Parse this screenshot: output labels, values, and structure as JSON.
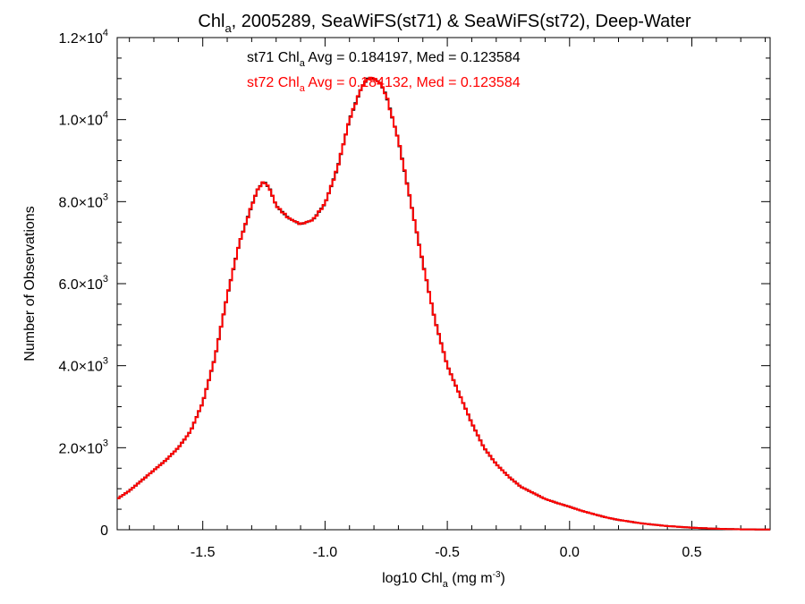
{
  "chart_data": {
    "type": "line",
    "title_parts": [
      "Chl",
      "a",
      ", 2005289, SeaWiFS(st71) & SeaWiFS(st72), Deep-Water"
    ],
    "xlabel_parts": [
      "log10 Chl",
      "a",
      " (mg m",
      "-3",
      ")"
    ],
    "ylabel": "Number of Observations",
    "xlim": [
      -1.85,
      0.82
    ],
    "ylim": [
      0,
      12000
    ],
    "x_ticks": [
      {
        "value": -1.5,
        "label": "-1.5"
      },
      {
        "value": -1.0,
        "label": "-1.0"
      },
      {
        "value": -0.5,
        "label": "-0.5"
      },
      {
        "value": 0.0,
        "label": "0.0"
      },
      {
        "value": 0.5,
        "label": "0.5"
      }
    ],
    "y_ticks": [
      {
        "value": 0,
        "mantissa": "0",
        "exp": ""
      },
      {
        "value": 2000,
        "mantissa": "2.0×10",
        "exp": "3"
      },
      {
        "value": 4000,
        "mantissa": "4.0×10",
        "exp": "3"
      },
      {
        "value": 6000,
        "mantissa": "6.0×10",
        "exp": "3"
      },
      {
        "value": 8000,
        "mantissa": "8.0×10",
        "exp": "3"
      },
      {
        "value": 10000,
        "mantissa": "1.0×10",
        "exp": "4"
      },
      {
        "value": 12000,
        "mantissa": "1.2×10",
        "exp": "4"
      }
    ],
    "annotations": [
      {
        "series": "st71",
        "parts": [
          "st71 Chl",
          "a",
          " Avg = 0.184197, Med = 0.123584"
        ],
        "color": "#000000"
      },
      {
        "series": "st72",
        "parts": [
          "st72 Chl",
          "a",
          " Avg = 0.184132, Med = 0.123584"
        ],
        "color": "#ff0000"
      }
    ],
    "series": [
      {
        "name": "st71",
        "color": "#000000",
        "style": "step"
      },
      {
        "name": "st72",
        "color": "#ff0000",
        "style": "step"
      }
    ],
    "x": [
      -1.85,
      -1.8,
      -1.75,
      -1.7,
      -1.65,
      -1.6,
      -1.55,
      -1.5,
      -1.45,
      -1.4,
      -1.35,
      -1.3,
      -1.275,
      -1.25,
      -1.225,
      -1.2,
      -1.15,
      -1.1,
      -1.05,
      -1.0,
      -0.95,
      -0.9,
      -0.85,
      -0.825,
      -0.8,
      -0.775,
      -0.75,
      -0.7,
      -0.65,
      -0.6,
      -0.55,
      -0.5,
      -0.45,
      -0.4,
      -0.35,
      -0.3,
      -0.25,
      -0.2,
      -0.15,
      -0.1,
      -0.05,
      0.0,
      0.05,
      0.1,
      0.15,
      0.2,
      0.3,
      0.4,
      0.5,
      0.6,
      0.7,
      0.82
    ],
    "values": [
      750,
      950,
      1200,
      1450,
      1700,
      2000,
      2400,
      3100,
      4200,
      5700,
      7000,
      7900,
      8300,
      8500,
      8300,
      7900,
      7600,
      7450,
      7550,
      7950,
      8800,
      10000,
      10800,
      11000,
      11000,
      10900,
      10600,
      9500,
      8000,
      6500,
      5100,
      4000,
      3300,
      2600,
      2000,
      1600,
      1300,
      1050,
      900,
      750,
      650,
      560,
      460,
      380,
      300,
      240,
      150,
      90,
      50,
      25,
      10,
      5
    ]
  }
}
